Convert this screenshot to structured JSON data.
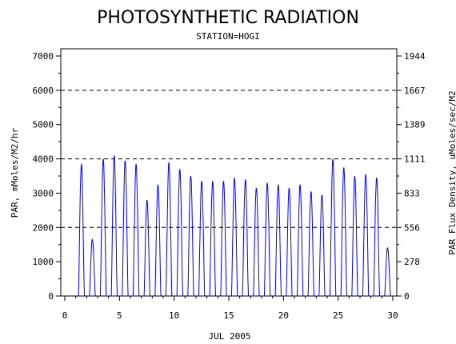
{
  "chart_data": {
    "type": "line",
    "title": "PHOTOSYNTHETIC RADIATION",
    "subtitle": "STATION=HOGI",
    "xlabel": "JUL 2005",
    "ylabel": "PAR, mMoles/M2/hr",
    "ylabel_right": "PAR Flux Density, uMoles/sec/M2",
    "xlim": [
      0,
      30
    ],
    "ylim": [
      0,
      7000
    ],
    "x_ticks": [
      "0",
      "5",
      "10",
      "15",
      "20",
      "25",
      "30"
    ],
    "y_ticks": [
      "0",
      "1000",
      "2000",
      "3000",
      "4000",
      "5000",
      "6000",
      "7000"
    ],
    "y_ticks_right": [
      "0",
      "278",
      "556",
      "833",
      "1111",
      "1389",
      "1667",
      "1944"
    ],
    "grid_lines_y": [
      2000,
      4000,
      6000
    ],
    "line_color": "#0000ff",
    "series": [
      {
        "daily_peaks": [
          {
            "day": 1,
            "value": 3850
          },
          {
            "day": 2,
            "value": 1650
          },
          {
            "day": 3,
            "value": 4000
          },
          {
            "day": 4,
            "value": 4100
          },
          {
            "day": 5,
            "value": 3950
          },
          {
            "day": 6,
            "value": 3850
          },
          {
            "day": 7,
            "value": 2800
          },
          {
            "day": 8,
            "value": 3250
          },
          {
            "day": 9,
            "value": 3900
          },
          {
            "day": 10,
            "value": 3700
          },
          {
            "day": 11,
            "value": 3500
          },
          {
            "day": 12,
            "value": 3350
          },
          {
            "day": 13,
            "value": 3350
          },
          {
            "day": 14,
            "value": 3350
          },
          {
            "day": 15,
            "value": 3450
          },
          {
            "day": 16,
            "value": 3400
          },
          {
            "day": 17,
            "value": 3150
          },
          {
            "day": 18,
            "value": 3300
          },
          {
            "day": 19,
            "value": 3250
          },
          {
            "day": 20,
            "value": 3150
          },
          {
            "day": 21,
            "value": 3250
          },
          {
            "day": 22,
            "value": 3050
          },
          {
            "day": 23,
            "value": 2950
          },
          {
            "day": 24,
            "value": 4000
          },
          {
            "day": 25,
            "value": 3750
          },
          {
            "day": 26,
            "value": 3500
          },
          {
            "day": 27,
            "value": 3550
          },
          {
            "day": 28,
            "value": 3450
          },
          {
            "day": 29,
            "value": 1400
          }
        ]
      }
    ]
  }
}
